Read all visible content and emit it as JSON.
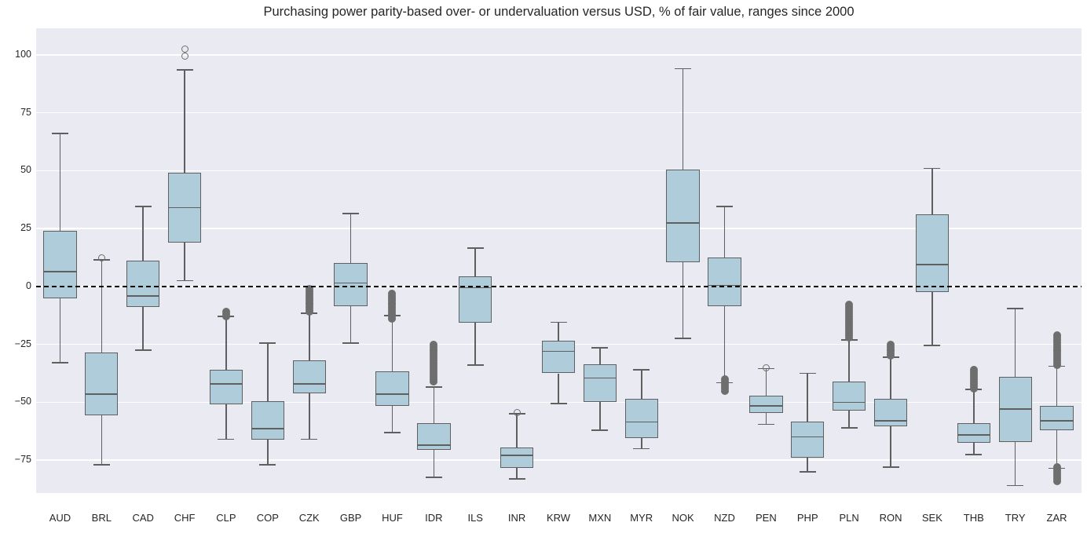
{
  "chart_data": {
    "type": "boxplot",
    "title": "Purchasing power parity-based over- or undervaluation versus USD, % of fair value, ranges since 2000",
    "xlabel": "",
    "ylabel": "",
    "ylim": [
      -89.2,
      111.5
    ],
    "yticks": [
      100,
      75,
      50,
      25,
      0,
      -25,
      -50,
      -75
    ],
    "grid": true,
    "zero_line": 0,
    "categories": [
      "AUD",
      "BRL",
      "CAD",
      "CHF",
      "CLP",
      "COP",
      "CZK",
      "GBP",
      "HUF",
      "IDR",
      "ILS",
      "INR",
      "KRW",
      "MXN",
      "MYR",
      "NOK",
      "NZD",
      "PEN",
      "PHP",
      "PLN",
      "RON",
      "SEK",
      "THB",
      "TRY",
      "ZAR"
    ],
    "series": [
      {
        "label": "AUD",
        "whislo": -33,
        "q1": -5,
        "med": 6.5,
        "q3": 24,
        "whishi": 66,
        "fliers_open": [],
        "fliers_dense": []
      },
      {
        "label": "BRL",
        "whislo": -77,
        "q1": -55.5,
        "med": -46.5,
        "q3": -28.5,
        "whishi": 11.5,
        "fliers_open": [
          12.5
        ],
        "fliers_dense": []
      },
      {
        "label": "CAD",
        "whislo": -27.5,
        "q1": -9,
        "med": -4,
        "q3": 11,
        "whishi": 34.5,
        "fliers_open": [],
        "fliers_dense": []
      },
      {
        "label": "CHF",
        "whislo": 2.5,
        "q1": 19,
        "med": 34,
        "q3": 49,
        "whishi": 93.5,
        "fliers_open": [
          99.5,
          102.5
        ],
        "fliers_dense": []
      },
      {
        "label": "CLP",
        "whislo": -66,
        "q1": -51,
        "med": -42,
        "q3": -36,
        "whishi": -13,
        "fliers_open": [],
        "fliers_dense": [
          -11,
          -12,
          -13
        ]
      },
      {
        "label": "COP",
        "whislo": -77,
        "q1": -66,
        "med": -61.5,
        "q3": -49.5,
        "whishi": -24.5,
        "fliers_open": [],
        "fliers_dense": []
      },
      {
        "label": "CZK",
        "whislo": -66,
        "q1": -46,
        "med": -42,
        "q3": -32,
        "whishi": -11.5,
        "fliers_open": [],
        "fliers_dense": [
          -1,
          -2,
          -3,
          -4,
          -5,
          -6,
          -7,
          -8,
          -9,
          -10,
          -11
        ]
      },
      {
        "label": "GBP",
        "whislo": -24.5,
        "q1": -8.5,
        "med": 1.5,
        "q3": 10,
        "whishi": 31.5,
        "fliers_open": [],
        "fliers_dense": []
      },
      {
        "label": "HUF",
        "whislo": -63,
        "q1": -51.5,
        "med": -46.5,
        "q3": -36.5,
        "whishi": -12.5,
        "fliers_open": [],
        "fliers_dense": [
          -3,
          -4,
          -5,
          -6,
          -7,
          -8,
          -9,
          -10,
          -11,
          -12,
          -13,
          -14
        ]
      },
      {
        "label": "IDR",
        "whislo": -82.5,
        "q1": -70.5,
        "med": -68.5,
        "q3": -59,
        "whishi": -43.5,
        "fliers_open": [],
        "fliers_dense": [
          -25,
          -26,
          -27,
          -28,
          -29,
          -30,
          -31,
          -32,
          -33,
          -34,
          -35,
          -36,
          -37,
          -38,
          -39,
          -40,
          -41
        ]
      },
      {
        "label": "ILS",
        "whislo": -34,
        "q1": -15.5,
        "med": -0.5,
        "q3": 4.5,
        "whishi": 16.5,
        "fliers_open": [],
        "fliers_dense": []
      },
      {
        "label": "INR",
        "whislo": -83,
        "q1": -78.5,
        "med": -73,
        "q3": -69.5,
        "whishi": -55,
        "fliers_open": [
          -54.5
        ],
        "fliers_dense": []
      },
      {
        "label": "KRW",
        "whislo": -50.5,
        "q1": -37.5,
        "med": -28,
        "q3": -23.5,
        "whishi": -15.5,
        "fliers_open": [],
        "fliers_dense": []
      },
      {
        "label": "MXN",
        "whislo": -62,
        "q1": -50,
        "med": -39.5,
        "q3": -33.5,
        "whishi": -26.5,
        "fliers_open": [],
        "fliers_dense": []
      },
      {
        "label": "MYR",
        "whislo": -70,
        "q1": -65.5,
        "med": -58.5,
        "q3": -48.5,
        "whishi": -36,
        "fliers_open": [],
        "fliers_dense": []
      },
      {
        "label": "NOK",
        "whislo": -22.5,
        "q1": 10.5,
        "med": 27.5,
        "q3": 50.5,
        "whishi": 94,
        "fliers_open": [],
        "fliers_dense": []
      },
      {
        "label": "NZD",
        "whislo": -41.5,
        "q1": -8.5,
        "med": 0.5,
        "q3": 12.5,
        "whishi": 34.5,
        "fliers_open": [],
        "fliers_dense": [
          -40,
          -41,
          -42,
          -43,
          -44,
          -45
        ]
      },
      {
        "label": "PEN",
        "whislo": -59.5,
        "q1": -54.5,
        "med": -51.5,
        "q3": -47,
        "whishi": -35.5,
        "fliers_open": [
          -35
        ],
        "fliers_dense": []
      },
      {
        "label": "PHP",
        "whislo": -80,
        "q1": -74,
        "med": -65,
        "q3": -58.5,
        "whishi": -37.5,
        "fliers_open": [],
        "fliers_dense": []
      },
      {
        "label": "PLN",
        "whislo": -61,
        "q1": -53.5,
        "med": -50,
        "q3": -41,
        "whishi": -23,
        "fliers_open": [],
        "fliers_dense": [
          -8,
          -9,
          -10,
          -11,
          -12,
          -13,
          -14,
          -15,
          -16,
          -17,
          -18,
          -19,
          -20,
          -21,
          -22
        ]
      },
      {
        "label": "RON",
        "whislo": -78,
        "q1": -60.5,
        "med": -58,
        "q3": -48.5,
        "whishi": -30.5,
        "fliers_open": [],
        "fliers_dense": [
          -25,
          -26,
          -27,
          -28,
          -29,
          -30
        ]
      },
      {
        "label": "SEK",
        "whislo": -25.5,
        "q1": -2.5,
        "med": 9.5,
        "q3": 31,
        "whishi": 51,
        "fliers_open": [],
        "fliers_dense": []
      },
      {
        "label": "THB",
        "whislo": -72.5,
        "q1": -67.5,
        "med": -64,
        "q3": -59,
        "whishi": -44.5,
        "fliers_open": [],
        "fliers_dense": [
          -36,
          -37,
          -38,
          -39,
          -40,
          -41,
          -42,
          -43,
          -44
        ]
      },
      {
        "label": "TRY",
        "whislo": -86,
        "q1": -67,
        "med": -53,
        "q3": -39,
        "whishi": -9.5,
        "fliers_open": [],
        "fliers_dense": []
      },
      {
        "label": "ZAR",
        "whislo": -78.5,
        "q1": -62,
        "med": -58,
        "q3": -51.5,
        "whishi": -34.5,
        "fliers_open": [],
        "fliers_dense": [
          -21,
          -22,
          -23,
          -24,
          -25,
          -26,
          -27,
          -28,
          -29,
          -30,
          -31,
          -32,
          -33,
          -34,
          -78,
          -79,
          -80,
          -81,
          -82,
          -83,
          -84
        ]
      }
    ],
    "style": {
      "box_fill": "#afccda",
      "box_edge": "#5f5f5f",
      "median_color": "#5f5f5f",
      "outlier_color": "#6e6e6e",
      "axes_background": "#eaeaf2",
      "grid_color": "#ffffff",
      "zero_line_color": "#000000",
      "text_color": "#262626"
    }
  }
}
